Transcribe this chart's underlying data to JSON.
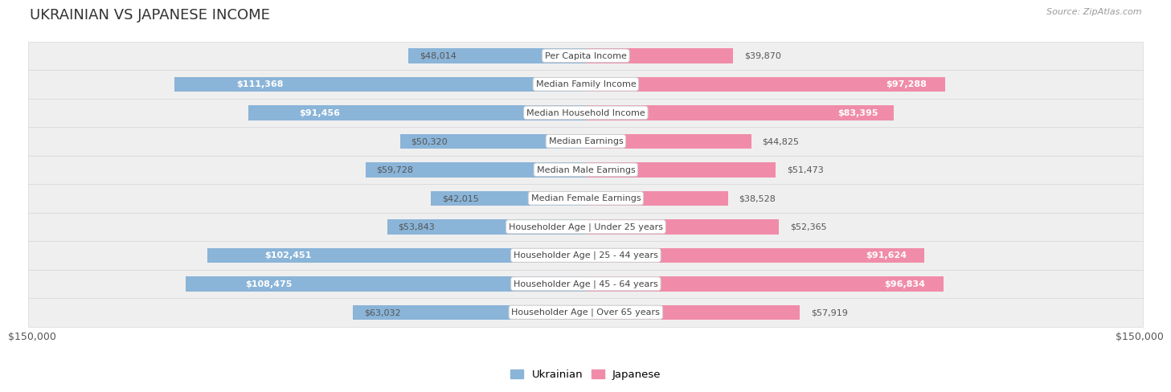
{
  "title": "UKRAINIAN VS JAPANESE INCOME",
  "source": "Source: ZipAtlas.com",
  "max_value": 150000,
  "bar_height": 0.52,
  "categories": [
    "Per Capita Income",
    "Median Family Income",
    "Median Household Income",
    "Median Earnings",
    "Median Male Earnings",
    "Median Female Earnings",
    "Householder Age | Under 25 years",
    "Householder Age | 25 - 44 years",
    "Householder Age | 45 - 64 years",
    "Householder Age | Over 65 years"
  ],
  "ukrainian_values": [
    48014,
    111368,
    91456,
    50320,
    59728,
    42015,
    53843,
    102451,
    108475,
    63032
  ],
  "japanese_values": [
    39870,
    97288,
    83395,
    44825,
    51473,
    38528,
    52365,
    91624,
    96834,
    57919
  ],
  "ukrainian_labels": [
    "$48,014",
    "$111,368",
    "$91,456",
    "$50,320",
    "$59,728",
    "$42,015",
    "$53,843",
    "$102,451",
    "$108,475",
    "$63,032"
  ],
  "japanese_labels": [
    "$39,870",
    "$97,288",
    "$83,395",
    "$44,825",
    "$51,473",
    "$38,528",
    "$52,365",
    "$91,624",
    "$96,834",
    "$57,919"
  ],
  "ukrainian_color": "#8ab4d8",
  "japanese_color": "#f08caa",
  "label_inside_threshold": 75000,
  "bg_row_color_even": "#f0f0f0",
  "bg_row_color_odd": "#e8e8e8",
  "bg_row_color": "#efefef",
  "bg_row_border": "#d8d8d8",
  "label_text_dark": "#555555",
  "label_text_light": "#ffffff",
  "title_fontsize": 13,
  "source_fontsize": 8,
  "category_fontsize": 8,
  "label_fontsize": 8
}
